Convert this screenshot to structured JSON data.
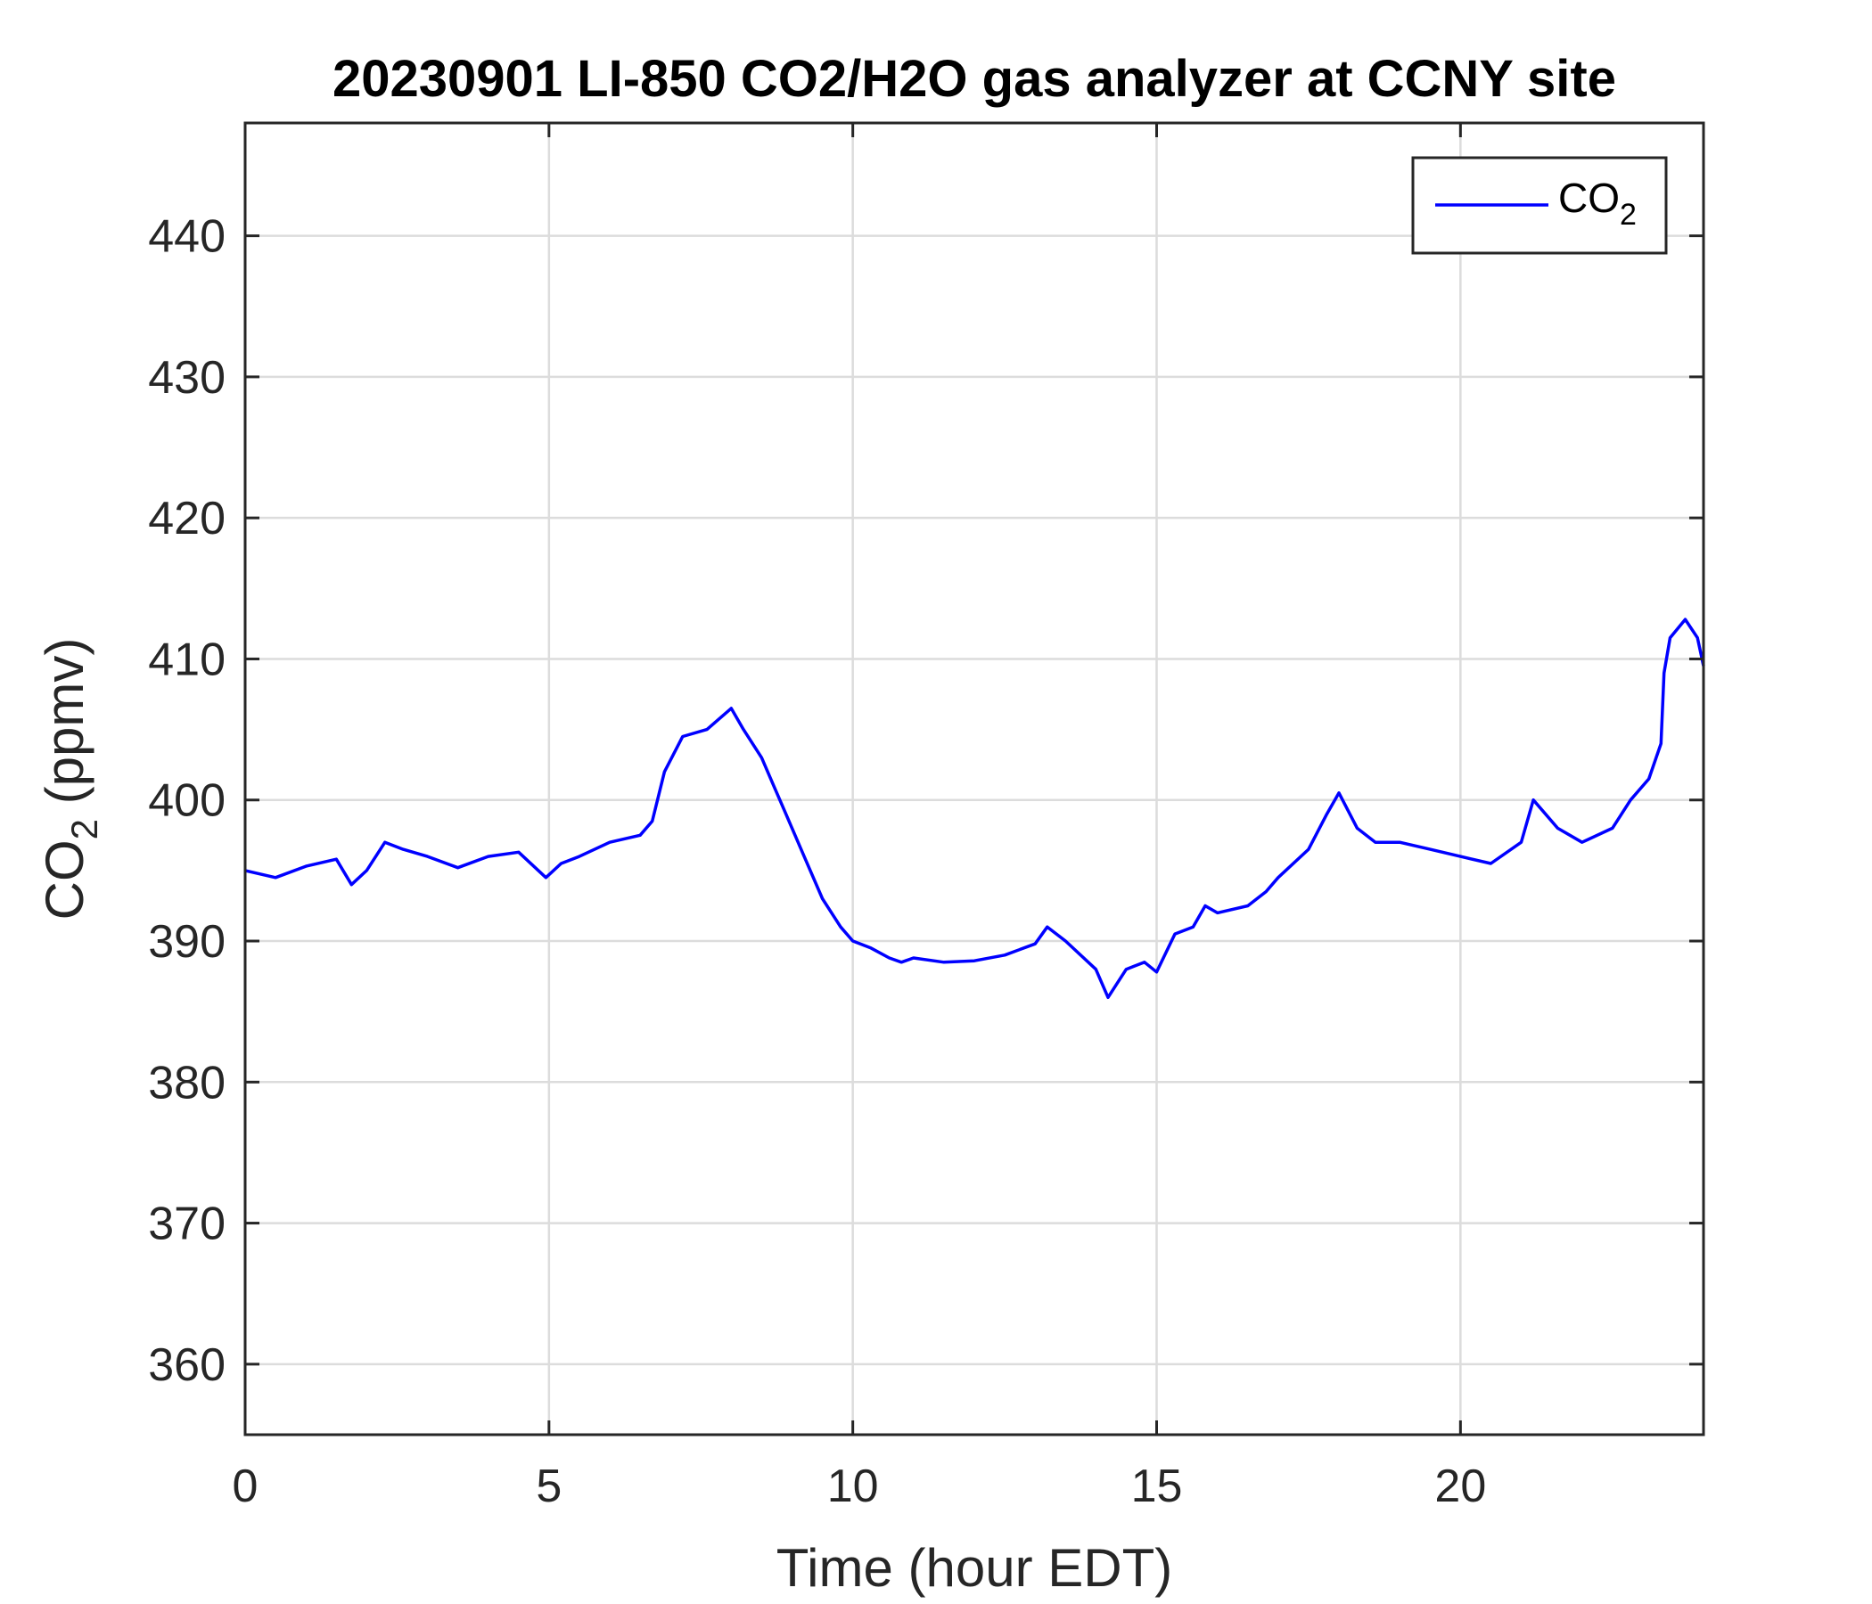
{
  "chart_data": {
    "type": "line",
    "title": "20230901 LI-850 CO2/H2O gas analyzer at CCNY site",
    "xlabel": "Time (hour EDT)",
    "ylabel": {
      "main": "CO",
      "sub": "2",
      "rest": " (ppmv)"
    },
    "xlim": [
      0,
      24
    ],
    "ylim": [
      355,
      448
    ],
    "xticks": [
      0,
      5,
      10,
      15,
      20
    ],
    "yticks": [
      360,
      370,
      380,
      390,
      400,
      410,
      420,
      430,
      440
    ],
    "grid": true,
    "legend_position": "top-right",
    "series": [
      {
        "name": {
          "main": "CO",
          "sub": "2"
        },
        "color": "#0000ff",
        "x": [
          0,
          0.5,
          1.0,
          1.5,
          1.75,
          2.0,
          2.3,
          2.6,
          3.0,
          3.5,
          4.0,
          4.5,
          4.95,
          5.2,
          5.5,
          6.0,
          6.5,
          6.7,
          6.9,
          7.2,
          7.6,
          8.0,
          8.2,
          8.5,
          8.7,
          8.9,
          9.2,
          9.5,
          9.8,
          10.0,
          10.3,
          10.6,
          10.8,
          11.0,
          11.5,
          12.0,
          12.5,
          13.0,
          13.2,
          13.5,
          14.0,
          14.2,
          14.5,
          14.8,
          15.0,
          15.3,
          15.6,
          15.8,
          16.0,
          16.5,
          16.8,
          17.0,
          17.5,
          17.8,
          18.0,
          18.3,
          18.6,
          19.0,
          19.5,
          20.0,
          20.5,
          21.0,
          21.2,
          21.6,
          22.0,
          22.5,
          22.8,
          23.1,
          23.3,
          23.35,
          23.45,
          23.7,
          23.9,
          24.0
        ],
        "y": [
          395.0,
          394.5,
          395.3,
          395.8,
          394.0,
          395.0,
          397.0,
          396.5,
          396.0,
          395.2,
          396.0,
          396.3,
          394.5,
          395.5,
          396.0,
          397.0,
          397.5,
          398.5,
          402.0,
          404.5,
          405.0,
          406.5,
          405.0,
          403.0,
          401.0,
          399.0,
          396.0,
          393.0,
          391.0,
          390.0,
          389.5,
          388.8,
          388.5,
          388.8,
          388.5,
          388.6,
          389.0,
          389.8,
          391.0,
          390.0,
          388.0,
          386.0,
          388.0,
          388.5,
          387.8,
          390.5,
          391.0,
          392.5,
          392.0,
          392.5,
          393.5,
          394.5,
          396.5,
          399.0,
          400.5,
          398.0,
          397.0,
          397.0,
          396.5,
          396.0,
          395.5,
          397.0,
          400.0,
          398.0,
          397.0,
          398.0,
          400.0,
          401.5,
          404.0,
          409.0,
          411.5,
          412.8,
          411.5,
          409.5
        ]
      }
    ]
  }
}
